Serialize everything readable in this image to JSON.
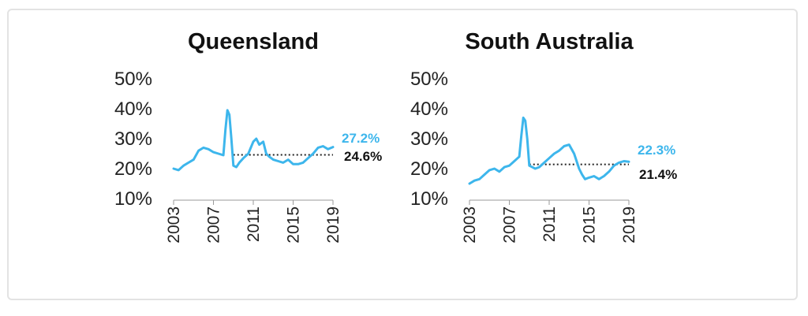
{
  "colors": {
    "series": "#3DB6EC",
    "average": "#222222",
    "border": "#e3e3e3"
  },
  "chart_data": [
    {
      "type": "line",
      "title": "Queensland",
      "xlabel": "",
      "ylabel": "",
      "ylim": [
        10,
        50
      ],
      "yticks": [
        "50%",
        "40%",
        "30%",
        "20%",
        "10%"
      ],
      "xlim": [
        2003,
        2019
      ],
      "xticks": [
        "2003",
        "2007",
        "2011",
        "2015",
        "2019"
      ],
      "series": [
        {
          "x": [
            2003,
            2003.5,
            2004,
            2004.5,
            2005,
            2005.5,
            2006,
            2006.5,
            2007,
            2007.5,
            2008,
            2008.2,
            2008.4,
            2008.6,
            2008.8,
            2009,
            2009.3,
            2009.6,
            2010,
            2010.5,
            2011,
            2011.3,
            2011.6,
            2012,
            2012.3,
            2012.6,
            2013,
            2013.5,
            2014,
            2014.5,
            2015,
            2015.5,
            2016,
            2016.5,
            2017,
            2017.5,
            2018,
            2018.5,
            2019
          ],
          "values": [
            20,
            19.5,
            21,
            22,
            23,
            26,
            27,
            26.5,
            25.5,
            25,
            24.5,
            33,
            39.5,
            38,
            30,
            21,
            20.5,
            22,
            23.5,
            25,
            29,
            30,
            28,
            29,
            25,
            24,
            23,
            22.5,
            22,
            23,
            21.5,
            21.5,
            22,
            23.5,
            25,
            27,
            27.5,
            26.5,
            27.2
          ]
        }
      ],
      "average": {
        "value": 24.6,
        "x_start": 2009.0,
        "x_end": 2019.0
      },
      "current_label": "27.2%",
      "average_label": "24.6%"
    },
    {
      "type": "line",
      "title": "South Australia",
      "xlabel": "",
      "ylabel": "",
      "ylim": [
        10,
        50
      ],
      "yticks": [
        "50%",
        "40%",
        "30%",
        "20%",
        "10%"
      ],
      "xlim": [
        2003,
        2019
      ],
      "xticks": [
        "2003",
        "2007",
        "2011",
        "2015",
        "2019"
      ],
      "series": [
        {
          "x": [
            2003,
            2003.5,
            2004,
            2004.5,
            2005,
            2005.5,
            2006,
            2006.5,
            2007,
            2007.5,
            2008,
            2008.2,
            2008.4,
            2008.6,
            2008.8,
            2009,
            2009.3,
            2009.6,
            2010,
            2010.5,
            2011,
            2011.5,
            2012,
            2012.5,
            2013,
            2013.5,
            2014,
            2014.3,
            2014.6,
            2015,
            2015.5,
            2016,
            2016.5,
            2017,
            2017.5,
            2018,
            2018.5,
            2019
          ],
          "values": [
            15,
            16,
            16.5,
            18,
            19.5,
            20,
            19,
            20.5,
            21,
            22.5,
            24,
            31,
            37,
            36,
            30,
            21,
            20.5,
            20,
            20.5,
            22,
            23.5,
            25,
            26,
            27.5,
            28,
            25,
            20,
            18,
            16.5,
            17,
            17.5,
            16.5,
            17.5,
            19,
            21,
            22,
            22.5,
            22.3
          ]
        }
      ],
      "average": {
        "value": 21.4,
        "x_start": 2009.0,
        "x_end": 2019.0
      },
      "current_label": "22.3%",
      "average_label": "21.4%"
    }
  ]
}
